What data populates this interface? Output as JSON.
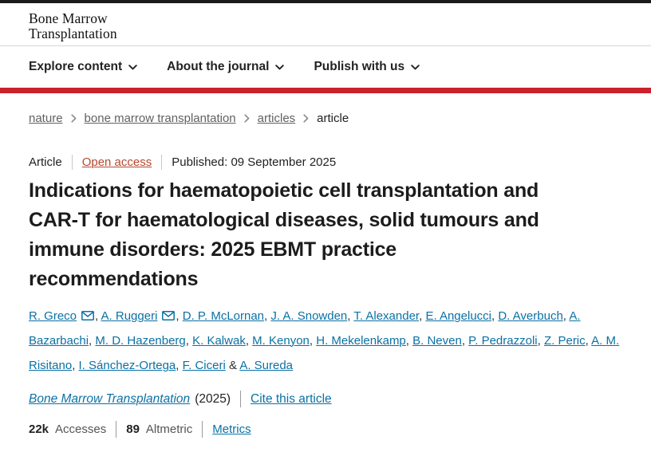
{
  "colors": {
    "brand_red": "#cb202d",
    "top_bar": "#1b1b1b",
    "link_blue": "#0b71a5",
    "open_access_red": "#b6492f",
    "text_dark": "#222222",
    "text_gray": "#616161"
  },
  "header": {
    "journal_title_lines": [
      "Bone Marrow",
      "Transplantation"
    ],
    "nav_items": [
      "Explore content",
      "About the journal",
      "Publish with us"
    ]
  },
  "breadcrumb": [
    {
      "label": "nature",
      "current": false
    },
    {
      "label": "bone marrow transplantation",
      "current": false
    },
    {
      "label": "articles",
      "current": false
    },
    {
      "label": "article",
      "current": true
    }
  ],
  "article": {
    "type_label": "Article",
    "access_label": "Open access",
    "published_text": "Published: 09 September 2025",
    "title": "Indications for haematopoietic cell transplantation and CAR-T for haematological diseases, solid tumours and immune disorders: 2025 EBMT practice recommendations",
    "title_lines": [
      "Indications for haematopoietic cell transplantation and",
      "CAR-T for haematological diseases, solid tumours and",
      "immune disorders: 2025 EBMT practice",
      "recommendations"
    ],
    "authors": [
      {
        "name": "R. Greco",
        "email": true
      },
      {
        "name": "A. Ruggeri",
        "email": true
      },
      {
        "name": "D. P. McLornan",
        "email": false
      },
      {
        "name": "J. A. Snowden",
        "email": false
      },
      {
        "name": "T. Alexander",
        "email": false
      },
      {
        "name": "E. Angelucci",
        "email": false
      },
      {
        "name": "D. Averbuch",
        "email": false
      },
      {
        "name": "A. Bazarbachi",
        "email": false
      },
      {
        "name": "M. D. Hazenberg",
        "email": false
      },
      {
        "name": "K. Kalwak",
        "email": false
      },
      {
        "name": "M. Kenyon",
        "email": false
      },
      {
        "name": "H. Mekelenkamp",
        "email": false
      },
      {
        "name": "B. Neven",
        "email": false
      },
      {
        "name": "P. Pedrazzoli",
        "email": false
      },
      {
        "name": "Z. Peric",
        "email": false
      },
      {
        "name": "A. M. Risitano",
        "email": false
      },
      {
        "name": "I. Sánchez-Ortega",
        "email": false
      },
      {
        "name": "F. Ciceri",
        "email": false
      },
      {
        "name": "A. Sureda",
        "email": false
      }
    ],
    "citation": {
      "journal": "Bone Marrow Transplantation",
      "year": "(2025)",
      "cite_link": "Cite this article"
    },
    "metrics": {
      "accesses_value": "22k",
      "accesses_label": "Accesses",
      "altmetric_value": "89",
      "altmetric_label": "Altmetric",
      "metrics_link": "Metrics"
    }
  }
}
